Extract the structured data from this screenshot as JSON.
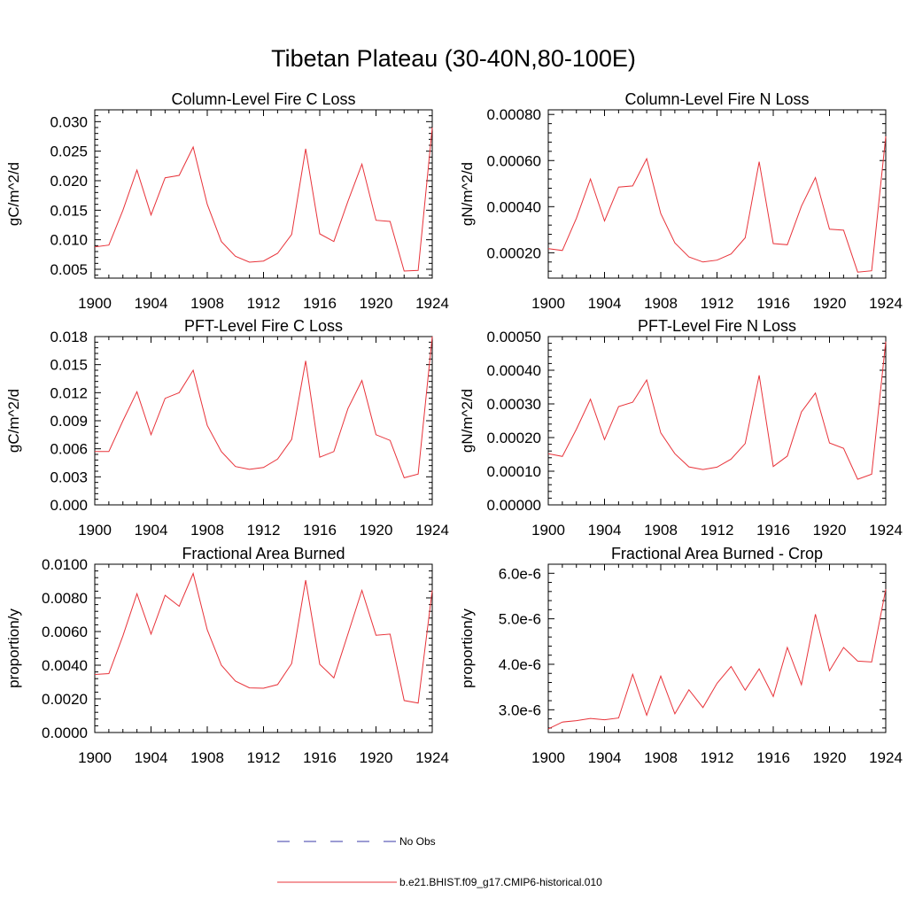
{
  "figure": {
    "title": "Tibetan Plateau (30-40N,80-100E)"
  },
  "legend": {
    "position": "bottom-center",
    "items": [
      {
        "label": "No Obs",
        "color": "#3a3aa8",
        "style": "dashed"
      },
      {
        "label": "b.e21.BHIST.f09_g17.CMIP6-historical.010",
        "color": "#e8333a",
        "style": "solid"
      }
    ]
  },
  "chart_data": [
    {
      "type": "line",
      "title": "Column-Level Fire C Loss",
      "ylabel": "gC/m^2/d",
      "xlim": [
        1900,
        1924
      ],
      "ylim": [
        0.0035,
        0.032
      ],
      "x_ticks": [
        1900,
        1904,
        1908,
        1912,
        1916,
        1920,
        1924
      ],
      "y_ticks": [
        "0.005",
        "0.010",
        "0.015",
        "0.020",
        "0.025",
        "0.030"
      ],
      "y_tick_values": [
        0.005,
        0.01,
        0.015,
        0.02,
        0.025,
        0.03
      ],
      "series": [
        {
          "color": "#e8333a",
          "x": [
            1900,
            1901,
            1902,
            1903,
            1904,
            1905,
            1906,
            1907,
            1908,
            1909,
            1910,
            1911,
            1912,
            1913,
            1914,
            1915,
            1916,
            1917,
            1918,
            1919,
            1920,
            1921,
            1922,
            1923,
            1924
          ],
          "y": [
            0.0088,
            0.0091,
            0.015,
            0.0218,
            0.0142,
            0.0205,
            0.0209,
            0.0257,
            0.016,
            0.0097,
            0.0072,
            0.0062,
            0.0064,
            0.0077,
            0.0109,
            0.0254,
            0.011,
            0.0097,
            0.0165,
            0.0228,
            0.0133,
            0.0131,
            0.0047,
            0.0048,
            0.029
          ]
        }
      ]
    },
    {
      "type": "line",
      "title": "Column-Level Fire N Loss",
      "ylabel": "gN/m^2/d",
      "xlim": [
        1900,
        1924
      ],
      "ylim": [
        9e-05,
        0.00082
      ],
      "x_ticks": [
        1900,
        1904,
        1908,
        1912,
        1916,
        1920,
        1924
      ],
      "y_ticks": [
        "0.00020",
        "0.00040",
        "0.00060",
        "0.00080"
      ],
      "y_tick_values": [
        0.0002,
        0.0004,
        0.0006,
        0.0008
      ],
      "series": [
        {
          "color": "#e8333a",
          "x": [
            1900,
            1901,
            1902,
            1903,
            1904,
            1905,
            1906,
            1907,
            1908,
            1909,
            1910,
            1911,
            1912,
            1913,
            1914,
            1915,
            1916,
            1917,
            1918,
            1919,
            1920,
            1921,
            1922,
            1923,
            1924
          ],
          "y": [
            0.000218,
            0.00021,
            0.00035,
            0.00052,
            0.000338,
            0.000485,
            0.00049,
            0.000608,
            0.00037,
            0.000243,
            0.000182,
            0.00016,
            0.000168,
            0.000195,
            0.000265,
            0.000595,
            0.00024,
            0.000235,
            0.000402,
            0.000526,
            0.000302,
            0.000298,
            0.000116,
            0.000122,
            0.000705
          ]
        }
      ]
    },
    {
      "type": "line",
      "title": "PFT-Level Fire C Loss",
      "ylabel": "gC/m^2/d",
      "xlim": [
        1900,
        1924
      ],
      "ylim": [
        0.0,
        0.018
      ],
      "x_ticks": [
        1900,
        1904,
        1908,
        1912,
        1916,
        1920,
        1924
      ],
      "y_ticks": [
        "0.000",
        "0.003",
        "0.006",
        "0.009",
        "0.012",
        "0.015",
        "0.018"
      ],
      "y_tick_values": [
        0.0,
        0.003,
        0.006,
        0.009,
        0.012,
        0.015,
        0.018
      ],
      "series": [
        {
          "color": "#e8333a",
          "x": [
            1900,
            1901,
            1902,
            1903,
            1904,
            1905,
            1906,
            1907,
            1908,
            1909,
            1910,
            1911,
            1912,
            1913,
            1914,
            1915,
            1916,
            1917,
            1918,
            1919,
            1920,
            1921,
            1922,
            1923,
            1924
          ],
          "y": [
            0.0057,
            0.0057,
            0.009,
            0.0121,
            0.0075,
            0.0114,
            0.012,
            0.0144,
            0.0085,
            0.0057,
            0.0041,
            0.0038,
            0.004,
            0.0049,
            0.007,
            0.0154,
            0.0051,
            0.0057,
            0.0103,
            0.0133,
            0.0075,
            0.0069,
            0.0029,
            0.0033,
            0.018
          ]
        }
      ]
    },
    {
      "type": "line",
      "title": "PFT-Level Fire N Loss",
      "ylabel": "gN/m^2/d",
      "xlim": [
        1900,
        1924
      ],
      "ylim": [
        0.0,
        0.0005
      ],
      "x_ticks": [
        1900,
        1904,
        1908,
        1912,
        1916,
        1920,
        1924
      ],
      "y_ticks": [
        "0.00000",
        "0.00010",
        "0.00020",
        "0.00030",
        "0.00040",
        "0.00050"
      ],
      "y_tick_values": [
        0.0,
        0.0001,
        0.0002,
        0.0003,
        0.0004,
        0.0005
      ],
      "series": [
        {
          "color": "#e8333a",
          "x": [
            1900,
            1901,
            1902,
            1903,
            1904,
            1905,
            1906,
            1907,
            1908,
            1909,
            1910,
            1911,
            1912,
            1913,
            1914,
            1915,
            1916,
            1917,
            1918,
            1919,
            1920,
            1921,
            1922,
            1923,
            1924
          ],
          "y": [
            0.000152,
            0.000144,
            0.000225,
            0.000314,
            0.000194,
            0.000292,
            0.000305,
            0.000371,
            0.000214,
            0.000152,
            0.000113,
            0.000105,
            0.000112,
            0.000136,
            0.000182,
            0.000385,
            0.000114,
            0.000145,
            0.000276,
            0.000332,
            0.000184,
            0.000168,
            7.6e-05,
            9.1e-05,
            0.000485
          ]
        }
      ]
    },
    {
      "type": "line",
      "title": "Fractional Area Burned",
      "ylabel": "proportion/y",
      "xlim": [
        1900,
        1924
      ],
      "ylim": [
        0.0,
        0.01
      ],
      "x_ticks": [
        1900,
        1904,
        1908,
        1912,
        1916,
        1920,
        1924
      ],
      "y_ticks": [
        "0.0000",
        "0.0020",
        "0.0040",
        "0.0060",
        "0.0080",
        "0.0100"
      ],
      "y_tick_values": [
        0.0,
        0.002,
        0.004,
        0.006,
        0.008,
        0.01
      ],
      "series": [
        {
          "color": "#e8333a",
          "x": [
            1900,
            1901,
            1902,
            1903,
            1904,
            1905,
            1906,
            1907,
            1908,
            1909,
            1910,
            1911,
            1912,
            1913,
            1914,
            1915,
            1916,
            1917,
            1918,
            1919,
            1920,
            1921,
            1922,
            1923,
            1924
          ],
          "y": [
            0.00345,
            0.0035,
            0.00575,
            0.00825,
            0.00585,
            0.00815,
            0.0075,
            0.00945,
            0.0061,
            0.004,
            0.00305,
            0.00265,
            0.00263,
            0.00285,
            0.0041,
            0.00905,
            0.00405,
            0.00325,
            0.00585,
            0.00845,
            0.00578,
            0.00585,
            0.0019,
            0.00175,
            0.00845
          ]
        }
      ]
    },
    {
      "type": "line",
      "title": "Fractional Area Burned - Crop",
      "ylabel": "proportion/y",
      "xlim": [
        1900,
        1924
      ],
      "ylim": [
        2.5e-06,
        6.2e-06
      ],
      "x_ticks": [
        1900,
        1904,
        1908,
        1912,
        1916,
        1920,
        1924
      ],
      "y_ticks": [
        "3.0e-6",
        "4.0e-6",
        "5.0e-6",
        "6.0e-6"
      ],
      "y_tick_values": [
        3e-06,
        4e-06,
        5e-06,
        6e-06
      ],
      "series": [
        {
          "color": "#e8333a",
          "x": [
            1900,
            1901,
            1902,
            1903,
            1904,
            1905,
            1906,
            1907,
            1908,
            1909,
            1910,
            1911,
            1912,
            1913,
            1914,
            1915,
            1916,
            1917,
            1918,
            1919,
            1920,
            1921,
            1922,
            1923,
            1924
          ],
          "y": [
            2.58e-06,
            2.73e-06,
            2.76e-06,
            2.81e-06,
            2.78e-06,
            2.82e-06,
            3.78e-06,
            2.88e-06,
            3.74e-06,
            2.91e-06,
            3.44e-06,
            3.05e-06,
            3.58e-06,
            3.95e-06,
            3.43e-06,
            3.9e-06,
            3.29e-06,
            4.37e-06,
            3.55e-06,
            5.1e-06,
            3.86e-06,
            4.37e-06,
            4.07e-06,
            4.05e-06,
            5.65e-06
          ]
        }
      ]
    }
  ]
}
